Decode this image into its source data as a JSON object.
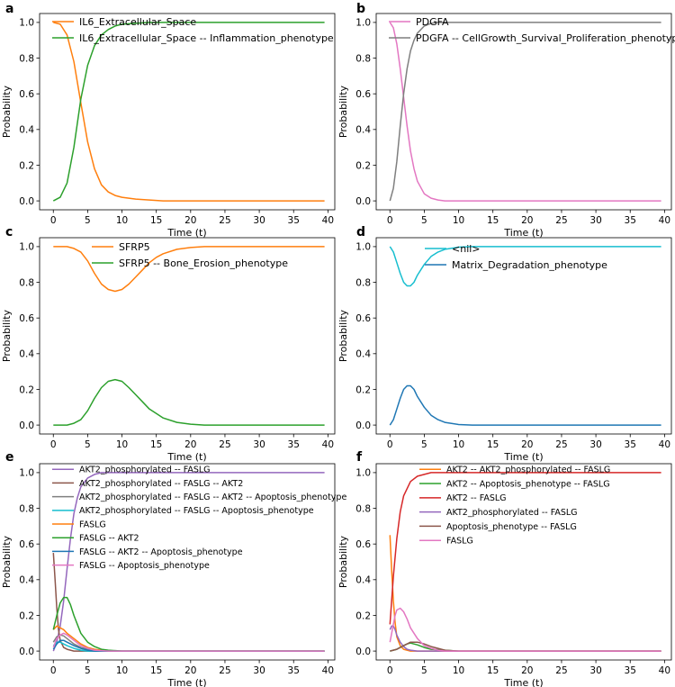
{
  "figure": {
    "colors": {
      "blue": "#1f77b4",
      "orange": "#ff7f0e",
      "green": "#2ca02c",
      "red": "#d62728",
      "purple": "#9467bd",
      "brown": "#8c564b",
      "pink": "#e377c2",
      "gray": "#7f7f7f",
      "cyan": "#17becf"
    }
  },
  "chart_data": [
    {
      "id": "a",
      "panel_label": "a",
      "type": "line",
      "xlabel": "Time (t)",
      "ylabel": "Probability",
      "xlim": [
        -2,
        41
      ],
      "ylim": [
        -0.05,
        1.05
      ],
      "xticks": [
        0,
        5,
        10,
        15,
        20,
        25,
        30,
        35,
        40
      ],
      "yticks": [
        0.0,
        0.2,
        0.4,
        0.6,
        0.8,
        1.0
      ],
      "legend": "top-left",
      "series": [
        {
          "name": "IL6_Extracellular_Space",
          "color": "orange",
          "x": [
            0,
            1,
            2,
            3,
            4,
            5,
            6,
            7,
            8,
            9,
            10,
            12,
            14,
            16,
            20,
            25,
            30,
            35,
            39.5
          ],
          "y": [
            1.0,
            0.99,
            0.93,
            0.78,
            0.55,
            0.33,
            0.18,
            0.09,
            0.05,
            0.03,
            0.02,
            0.01,
            0.005,
            0,
            0,
            0,
            0,
            0,
            0
          ]
        },
        {
          "name": "IL6_Extracellular_Space -- Inflammation_phenotype",
          "color": "green",
          "x": [
            0,
            1,
            2,
            3,
            4,
            5,
            6,
            7,
            8,
            9,
            10,
            12,
            14,
            16,
            20,
            25,
            30,
            35,
            39.5
          ],
          "y": [
            0.0,
            0.02,
            0.1,
            0.3,
            0.57,
            0.76,
            0.87,
            0.93,
            0.96,
            0.98,
            0.99,
            0.995,
            1,
            1,
            1,
            1,
            1,
            1,
            1
          ]
        }
      ]
    },
    {
      "id": "b",
      "panel_label": "b",
      "type": "line",
      "xlabel": "Time (t)",
      "ylabel": "Probability",
      "xlim": [
        -2,
        41
      ],
      "ylim": [
        -0.05,
        1.05
      ],
      "xticks": [
        0,
        5,
        10,
        15,
        20,
        25,
        30,
        35,
        40
      ],
      "yticks": [
        0.0,
        0.2,
        0.4,
        0.6,
        0.8,
        1.0
      ],
      "legend": "top-left",
      "series": [
        {
          "name": "PDGFA",
          "color": "pink",
          "x": [
            0,
            0.5,
            1,
            1.5,
            2,
            2.5,
            3,
            3.5,
            4,
            5,
            6,
            7,
            8,
            10,
            15,
            20,
            30,
            39.5
          ],
          "y": [
            1.0,
            0.97,
            0.88,
            0.74,
            0.58,
            0.42,
            0.28,
            0.18,
            0.11,
            0.04,
            0.015,
            0.005,
            0,
            0,
            0,
            0,
            0,
            0
          ]
        },
        {
          "name": "PDGFA -- CellGrowth_Survival_Proliferation_phenotype",
          "color": "gray",
          "x": [
            0,
            0.5,
            1,
            1.5,
            2,
            2.5,
            3,
            3.5,
            4,
            5,
            6,
            7,
            8,
            10,
            15,
            20,
            30,
            39.5
          ],
          "y": [
            0.0,
            0.07,
            0.22,
            0.42,
            0.6,
            0.74,
            0.84,
            0.9,
            0.94,
            0.98,
            0.995,
            1,
            1,
            1,
            1,
            1,
            1,
            1
          ]
        }
      ]
    },
    {
      "id": "c",
      "panel_label": "c",
      "type": "line",
      "xlabel": "Time (t)",
      "ylabel": "Probability",
      "xlim": [
        -2,
        41
      ],
      "ylim": [
        -0.05,
        1.05
      ],
      "xticks": [
        0,
        5,
        10,
        15,
        20,
        25,
        30,
        35,
        40
      ],
      "yticks": [
        0.0,
        0.2,
        0.4,
        0.6,
        0.8,
        1.0
      ],
      "legend": "top-center",
      "series": [
        {
          "name": "SFRP5",
          "color": "orange",
          "x": [
            0,
            2,
            3,
            4,
            5,
            6,
            7,
            8,
            9,
            10,
            11,
            12,
            13,
            14,
            15,
            16,
            18,
            20,
            22,
            25,
            30,
            35,
            39.5
          ],
          "y": [
            1.0,
            1.0,
            0.99,
            0.97,
            0.92,
            0.85,
            0.79,
            0.76,
            0.75,
            0.76,
            0.79,
            0.83,
            0.87,
            0.91,
            0.94,
            0.96,
            0.985,
            0.995,
            1,
            1,
            1,
            1,
            1
          ]
        },
        {
          "name": "SFRP5 -- Bone_Erosion_phenotype",
          "color": "green",
          "x": [
            0,
            2,
            3,
            4,
            5,
            6,
            7,
            8,
            9,
            10,
            11,
            12,
            13,
            14,
            15,
            16,
            18,
            20,
            22,
            25,
            30,
            35,
            39.5
          ],
          "y": [
            0.0,
            0.0,
            0.01,
            0.03,
            0.08,
            0.15,
            0.21,
            0.245,
            0.255,
            0.245,
            0.21,
            0.17,
            0.13,
            0.09,
            0.065,
            0.04,
            0.015,
            0.005,
            0,
            0,
            0,
            0,
            0
          ]
        }
      ]
    },
    {
      "id": "d",
      "panel_label": "d",
      "type": "line",
      "xlabel": "Time (t)",
      "ylabel": "Probability",
      "xlim": [
        -2,
        41
      ],
      "ylim": [
        -0.05,
        1.05
      ],
      "xticks": [
        0,
        5,
        10,
        15,
        20,
        25,
        30,
        35,
        40
      ],
      "yticks": [
        0.0,
        0.2,
        0.4,
        0.6,
        0.8,
        1.0
      ],
      "legend": "top-center",
      "series": [
        {
          "name": "<nil>",
          "color": "cyan",
          "x": [
            0,
            0.5,
            1,
            1.5,
            2,
            2.5,
            3,
            3.5,
            4,
            5,
            6,
            7,
            8,
            10,
            12,
            15,
            20,
            30,
            39.5
          ],
          "y": [
            1.0,
            0.97,
            0.91,
            0.85,
            0.8,
            0.78,
            0.78,
            0.8,
            0.84,
            0.9,
            0.945,
            0.97,
            0.985,
            0.997,
            1,
            1,
            1,
            1,
            1
          ]
        },
        {
          "name": "Matrix_Degradation_phenotype",
          "color": "blue",
          "x": [
            0,
            0.5,
            1,
            1.5,
            2,
            2.5,
            3,
            3.5,
            4,
            5,
            6,
            7,
            8,
            10,
            12,
            15,
            20,
            30,
            39.5
          ],
          "y": [
            0.0,
            0.03,
            0.09,
            0.15,
            0.2,
            0.22,
            0.22,
            0.2,
            0.16,
            0.1,
            0.055,
            0.03,
            0.015,
            0.003,
            0,
            0,
            0,
            0,
            0
          ]
        }
      ]
    },
    {
      "id": "e",
      "panel_label": "e",
      "type": "line",
      "xlabel": "Time (t)",
      "ylabel": "Probability",
      "xlim": [
        -2,
        41
      ],
      "ylim": [
        -0.05,
        1.05
      ],
      "xticks": [
        0,
        5,
        10,
        15,
        20,
        25,
        30,
        35,
        40
      ],
      "yticks": [
        0.0,
        0.2,
        0.4,
        0.6,
        0.8,
        1.0
      ],
      "legend": "top-left",
      "series": [
        {
          "name": "AKT2_phosphorylated -- FASLG",
          "color": "purple",
          "x": [
            0,
            0.5,
            1,
            1.5,
            2,
            2.5,
            3,
            3.5,
            4,
            5,
            6,
            7,
            8,
            10,
            15,
            20,
            30,
            39.5
          ],
          "y": [
            0.0,
            0.05,
            0.14,
            0.28,
            0.46,
            0.63,
            0.77,
            0.86,
            0.92,
            0.97,
            0.99,
            1,
            1,
            1,
            1,
            1,
            1,
            1
          ]
        },
        {
          "name": "AKT2_phosphorylated -- FASLG -- AKT2",
          "color": "brown",
          "x": [
            0,
            0.25,
            0.5,
            0.75,
            1,
            1.5,
            2,
            3,
            4,
            6,
            8,
            10,
            20,
            39.5
          ],
          "y": [
            0.55,
            0.4,
            0.24,
            0.12,
            0.06,
            0.02,
            0.01,
            0,
            0,
            0,
            0,
            0,
            0,
            0
          ]
        },
        {
          "name": "AKT2_phosphorylated -- FASLG -- AKT2 -- Apoptosis_phenotype",
          "color": "gray",
          "x": [
            0,
            0.5,
            1,
            1.5,
            2,
            3,
            4,
            5,
            6,
            8,
            10,
            20,
            39.5
          ],
          "y": [
            0.05,
            0.08,
            0.09,
            0.085,
            0.07,
            0.04,
            0.02,
            0.01,
            0.005,
            0,
            0,
            0,
            0
          ]
        },
        {
          "name": "AKT2_phosphorylated -- FASLG -- Apoptosis_phenotype",
          "color": "cyan",
          "x": [
            0,
            0.5,
            1,
            1.5,
            2,
            3,
            4,
            5,
            6,
            8,
            10,
            20,
            39.5
          ],
          "y": [
            0.03,
            0.05,
            0.05,
            0.04,
            0.03,
            0.015,
            0.005,
            0,
            0,
            0,
            0,
            0,
            0
          ]
        },
        {
          "name": "FASLG",
          "color": "orange",
          "x": [
            0,
            0.5,
            1,
            1.5,
            2,
            3,
            4,
            5,
            6,
            8,
            10,
            20,
            39.5
          ],
          "y": [
            0.12,
            0.14,
            0.13,
            0.12,
            0.1,
            0.07,
            0.04,
            0.02,
            0.01,
            0,
            0,
            0,
            0
          ]
        },
        {
          "name": "FASLG -- AKT2",
          "color": "green",
          "x": [
            0,
            0.5,
            1,
            1.5,
            2,
            2.5,
            3,
            4,
            5,
            6,
            7,
            8,
            10,
            15,
            20,
            39.5
          ],
          "y": [
            0.12,
            0.2,
            0.27,
            0.3,
            0.3,
            0.26,
            0.2,
            0.1,
            0.05,
            0.025,
            0.01,
            0.005,
            0,
            0,
            0,
            0
          ]
        },
        {
          "name": "FASLG -- AKT2 -- Apoptosis_phenotype",
          "color": "blue",
          "x": [
            0,
            0.5,
            1,
            1.5,
            2,
            3,
            4,
            5,
            6,
            8,
            10,
            20,
            39.5
          ],
          "y": [
            0.01,
            0.04,
            0.06,
            0.06,
            0.05,
            0.03,
            0.015,
            0.005,
            0,
            0,
            0,
            0,
            0
          ]
        },
        {
          "name": "FASLG -- Apoptosis_phenotype",
          "color": "pink",
          "x": [
            0,
            0.5,
            1,
            1.5,
            2,
            3,
            4,
            5,
            6,
            8,
            10,
            20,
            39.5
          ],
          "y": [
            0.02,
            0.07,
            0.09,
            0.1,
            0.09,
            0.06,
            0.03,
            0.015,
            0.005,
            0,
            0,
            0,
            0
          ]
        }
      ]
    },
    {
      "id": "f",
      "panel_label": "f",
      "type": "line",
      "xlabel": "Time (t)",
      "ylabel": "Probability",
      "xlim": [
        -2,
        41
      ],
      "ylim": [
        -0.05,
        1.05
      ],
      "xticks": [
        0,
        5,
        10,
        15,
        20,
        25,
        30,
        35,
        40
      ],
      "yticks": [
        0.0,
        0.2,
        0.4,
        0.6,
        0.8,
        1.0
      ],
      "legend": "top-center",
      "series": [
        {
          "name": "AKT2 -- AKT2_phosphorylated -- FASLG",
          "color": "orange",
          "x": [
            0,
            0.25,
            0.5,
            0.75,
            1,
            1.5,
            2,
            3,
            4,
            6,
            8,
            10,
            20,
            39.5
          ],
          "y": [
            0.65,
            0.45,
            0.28,
            0.16,
            0.08,
            0.03,
            0.01,
            0,
            0,
            0,
            0,
            0,
            0,
            0
          ]
        },
        {
          "name": "AKT2 -- Apoptosis_phenotype -- FASLG",
          "color": "green",
          "x": [
            0,
            0.5,
            1,
            1.5,
            2,
            2.5,
            3,
            4,
            5,
            6,
            8,
            10,
            20,
            39.5
          ],
          "y": [
            0.0,
            0.005,
            0.01,
            0.02,
            0.03,
            0.04,
            0.045,
            0.035,
            0.02,
            0.01,
            0.005,
            0,
            0,
            0
          ]
        },
        {
          "name": "AKT2 -- FASLG",
          "color": "red",
          "x": [
            0,
            0.5,
            1,
            1.5,
            2,
            3,
            4,
            5,
            6,
            8,
            10,
            15,
            20,
            30,
            39.5
          ],
          "y": [
            0.15,
            0.42,
            0.63,
            0.78,
            0.87,
            0.95,
            0.98,
            0.99,
            1,
            1,
            1,
            1,
            1,
            1,
            1
          ]
        },
        {
          "name": "AKT2_phosphorylated -- FASLG",
          "color": "purple",
          "x": [
            0,
            0.25,
            0.5,
            0.75,
            1,
            1.5,
            2,
            2.5,
            3,
            4,
            5,
            6,
            8,
            10,
            20,
            39.5
          ],
          "y": [
            0.12,
            0.14,
            0.14,
            0.12,
            0.09,
            0.05,
            0.025,
            0.01,
            0.005,
            0,
            0,
            0,
            0,
            0,
            0,
            0
          ]
        },
        {
          "name": "Apoptosis_phenotype -- FASLG",
          "color": "brown",
          "x": [
            0,
            0.5,
            1,
            1.5,
            2,
            2.5,
            3,
            4,
            5,
            6,
            7,
            8,
            10,
            20,
            39.5
          ],
          "y": [
            0.0,
            0.005,
            0.01,
            0.02,
            0.03,
            0.04,
            0.05,
            0.05,
            0.04,
            0.025,
            0.015,
            0.005,
            0,
            0,
            0
          ]
        },
        {
          "name": "FASLG",
          "color": "pink",
          "x": [
            0,
            0.25,
            0.5,
            0.75,
            1,
            1.5,
            2,
            2.5,
            3,
            4,
            5,
            6,
            7,
            8,
            10,
            20,
            39.5
          ],
          "y": [
            0.05,
            0.1,
            0.15,
            0.2,
            0.23,
            0.24,
            0.22,
            0.18,
            0.13,
            0.07,
            0.03,
            0.015,
            0.005,
            0,
            0,
            0,
            0
          ]
        }
      ]
    }
  ]
}
